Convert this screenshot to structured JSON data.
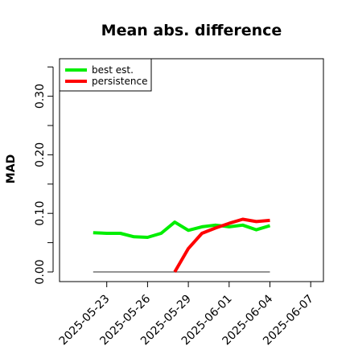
{
  "chart_data": {
    "type": "line",
    "title": "Mean abs. difference",
    "xlabel": "",
    "ylabel": "MAD",
    "x_ticks": [
      "2025-05-23",
      "2025-05-26",
      "2025-05-29",
      "2025-06-01",
      "2025-06-04",
      "2025-06-07"
    ],
    "y_ticks": [
      0.0,
      0.1,
      0.2,
      0.3
    ],
    "y_tick_labels": [
      "0.00",
      "0.10",
      "0.20",
      "0.30"
    ],
    "ylim": [
      0.0,
      0.35
    ],
    "xlim": [
      "2025-05-20",
      "2025-06-09"
    ],
    "grid": false,
    "legend_position": "top-left",
    "series": [
      {
        "name": "best est.",
        "color": "#00ee00",
        "x": [
          "2025-05-22",
          "2025-05-23",
          "2025-05-24",
          "2025-05-25",
          "2025-05-26",
          "2025-05-27",
          "2025-05-28",
          "2025-05-29",
          "2025-05-30",
          "2025-05-31",
          "2025-06-01",
          "2025-06-02",
          "2025-06-03",
          "2025-06-04"
        ],
        "y": [
          0.067,
          0.066,
          0.066,
          0.06,
          0.059,
          0.066,
          0.085,
          0.071,
          0.077,
          0.08,
          0.077,
          0.08,
          0.072,
          0.079
        ]
      },
      {
        "name": "persistence",
        "color": "#ff0000",
        "x": [
          "2025-05-28",
          "2025-05-29",
          "2025-05-30",
          "2025-05-31",
          "2025-06-01",
          "2025-06-02",
          "2025-06-03",
          "2025-06-04"
        ],
        "y": [
          0.0,
          0.04,
          0.066,
          0.075,
          0.083,
          0.09,
          0.086,
          0.088
        ]
      }
    ],
    "reference_line": {
      "color": "#555555",
      "y": 0.0,
      "x": [
        "2025-05-22",
        "2025-06-04"
      ]
    }
  }
}
